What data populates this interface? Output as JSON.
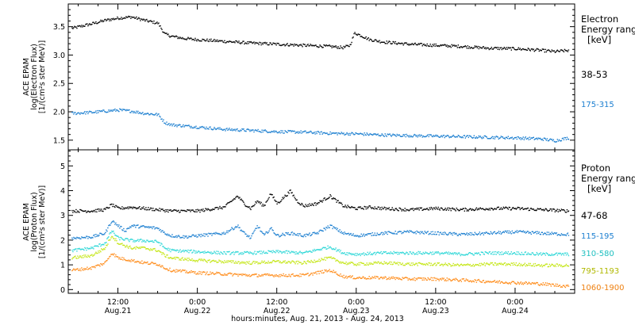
{
  "chart_data": {
    "x_axis": {
      "label": "hours:minutes, Aug. 21, 2013 - Aug. 24, 2013",
      "range_hours": [
        4.5,
        81
      ],
      "ticks": [
        {
          "hours": 12,
          "line1": "12:00",
          "line2": "Aug.21"
        },
        {
          "hours": 24,
          "line1": "0:00",
          "line2": "Aug.22"
        },
        {
          "hours": 36,
          "line1": "12:00",
          "line2": "Aug.22"
        },
        {
          "hours": 48,
          "line1": "0:00",
          "line2": "Aug.23"
        },
        {
          "hours": 60,
          "line1": "12:00",
          "line2": "Aug.23"
        },
        {
          "hours": 72,
          "line1": "0:00",
          "line2": "Aug.24"
        }
      ]
    },
    "panels": [
      {
        "id": "electron",
        "type": "scatter",
        "ylabel_lines": [
          "ACE EPAM",
          "log(Electron Flux)",
          "[1/(cm²s ster MeV)]"
        ],
        "ylim": [
          1.33,
          3.9
        ],
        "yticks": [
          "1.5",
          "2.0",
          "2.5",
          "3.0",
          "3.5"
        ],
        "ytick_values": [
          1.5,
          2.0,
          2.5,
          3.0,
          3.5
        ],
        "legend_title": [
          "Electron",
          "Energy ranges",
          "[keV]"
        ],
        "series": [
          {
            "name": "38-53",
            "color": "#000000",
            "label_color": "#000000",
            "x": [
              5,
              8,
              10,
              12,
              14,
              16,
              18,
              19,
              20,
              22,
              24,
              28,
              32,
              36,
              40,
              44,
              46,
              47,
              47.7,
              48.5,
              50,
              52,
              56,
              60,
              64,
              68,
              72,
              75,
              78,
              80
            ],
            "y": [
              3.48,
              3.56,
              3.62,
              3.66,
              3.68,
              3.62,
              3.57,
              3.38,
              3.34,
              3.3,
              3.28,
              3.25,
              3.22,
              3.2,
              3.18,
              3.16,
              3.14,
              3.18,
              3.4,
              3.36,
              3.28,
              3.24,
              3.2,
              3.18,
              3.16,
              3.13,
              3.12,
              3.1,
              3.07,
              3.09
            ]
          },
          {
            "name": "175-315",
            "color": "#1c7fd0",
            "label_color": "#1c7fd0",
            "x": [
              5,
              8,
              10,
              12,
              14,
              16,
              18,
              19,
              20,
              24,
              28,
              32,
              36,
              40,
              44,
              48,
              52,
              56,
              60,
              64,
              68,
              72,
              76,
              78,
              80
            ],
            "y": [
              1.98,
              2.0,
              2.02,
              2.04,
              2.02,
              1.98,
              1.96,
              1.82,
              1.78,
              1.74,
              1.7,
              1.68,
              1.66,
              1.65,
              1.63,
              1.62,
              1.6,
              1.59,
              1.58,
              1.57,
              1.56,
              1.55,
              1.53,
              1.5,
              1.55
            ]
          }
        ]
      },
      {
        "id": "proton",
        "type": "scatter",
        "ylabel_lines": [
          "ACE EPAM",
          "log(Proton Flux)",
          "[1/(cm²s ster MeV)]"
        ],
        "ylim": [
          -0.15,
          5.65
        ],
        "yticks": [
          "0",
          "1",
          "2",
          "3",
          "4",
          "5"
        ],
        "ytick_values": [
          0,
          1,
          2,
          3,
          4,
          5
        ],
        "legend_title": [
          "Proton",
          "Energy ranges",
          "[keV]"
        ],
        "series": [
          {
            "name": "47-68",
            "color": "#000000",
            "label_color": "#000000",
            "x": [
              5,
              8,
              10,
              11,
              12,
              14,
              16,
              18,
              20,
              24,
              28,
              30,
              31,
              32,
              33,
              34,
              35,
              36,
              38,
              39,
              40,
              42,
              44,
              46,
              48,
              50,
              52,
              56,
              60,
              64,
              68,
              72,
              76,
              80
            ],
            "y": [
              3.2,
              3.2,
              3.25,
              3.45,
              3.3,
              3.35,
              3.3,
              3.25,
              3.2,
              3.2,
              3.35,
              3.8,
              3.5,
              3.3,
              3.6,
              3.4,
              3.9,
              3.5,
              4.0,
              3.6,
              3.4,
              3.5,
              3.8,
              3.4,
              3.3,
              3.35,
              3.3,
              3.25,
              3.3,
              3.25,
              3.3,
              3.3,
              3.25,
              3.2
            ]
          },
          {
            "name": "115-195",
            "color": "#1c7fd0",
            "label_color": "#1c7fd0",
            "x": [
              5,
              8,
              10,
              11,
              12,
              13,
              14,
              16,
              18,
              19,
              20,
              22,
              24,
              28,
              30,
              31,
              32,
              33,
              34,
              35,
              36,
              38,
              40,
              42,
              44,
              46,
              48,
              52,
              56,
              60,
              64,
              68,
              72,
              76,
              80
            ],
            "y": [
              2.1,
              2.15,
              2.3,
              2.8,
              2.6,
              2.4,
              2.6,
              2.55,
              2.5,
              2.3,
              2.2,
              2.15,
              2.2,
              2.3,
              2.6,
              2.3,
              2.1,
              2.6,
              2.2,
              2.5,
              2.2,
              2.3,
              2.2,
              2.3,
              2.6,
              2.3,
              2.2,
              2.3,
              2.35,
              2.3,
              2.25,
              2.3,
              2.35,
              2.3,
              2.25
            ]
          },
          {
            "name": "310-580",
            "color": "#2ed7d7",
            "label_color": "#20c0c0",
            "x": [
              5,
              8,
              10,
              11,
              12,
              14,
              16,
              18,
              19,
              20,
              24,
              28,
              32,
              36,
              40,
              44,
              46,
              48,
              52,
              56,
              60,
              64,
              68,
              72,
              76,
              80
            ],
            "y": [
              1.6,
              1.7,
              1.9,
              2.4,
              2.1,
              2.0,
              2.0,
              1.95,
              1.7,
              1.6,
              1.55,
              1.5,
              1.5,
              1.55,
              1.5,
              1.75,
              1.5,
              1.45,
              1.5,
              1.5,
              1.5,
              1.45,
              1.5,
              1.5,
              1.45,
              1.45
            ]
          },
          {
            "name": "795-1193",
            "color": "#c4e614",
            "label_color": "#b0b800",
            "x": [
              5,
              8,
              10,
              11,
              12,
              14,
              16,
              18,
              19,
              20,
              24,
              28,
              32,
              36,
              40,
              44,
              46,
              48,
              52,
              56,
              60,
              64,
              68,
              72,
              76,
              80
            ],
            "y": [
              1.3,
              1.4,
              1.7,
              2.2,
              1.9,
              1.7,
              1.7,
              1.6,
              1.4,
              1.3,
              1.2,
              1.15,
              1.1,
              1.15,
              1.1,
              1.3,
              1.1,
              1.05,
              1.1,
              1.05,
              1.05,
              1.0,
              1.05,
              1.05,
              1.0,
              1.0
            ]
          },
          {
            "name": "1060-1900",
            "color": "#ff8c1a",
            "label_color": "#ee8010",
            "x": [
              5,
              8,
              10,
              11,
              12,
              14,
              16,
              18,
              19,
              20,
              24,
              28,
              32,
              36,
              40,
              44,
              46,
              48,
              52,
              56,
              60,
              64,
              68,
              72,
              76,
              80
            ],
            "y": [
              0.8,
              0.9,
              1.1,
              1.5,
              1.3,
              1.2,
              1.1,
              1.05,
              0.9,
              0.8,
              0.7,
              0.65,
              0.6,
              0.6,
              0.6,
              0.8,
              0.55,
              0.5,
              0.5,
              0.45,
              0.45,
              0.4,
              0.35,
              0.3,
              0.25,
              0.15
            ]
          }
        ]
      }
    ]
  }
}
